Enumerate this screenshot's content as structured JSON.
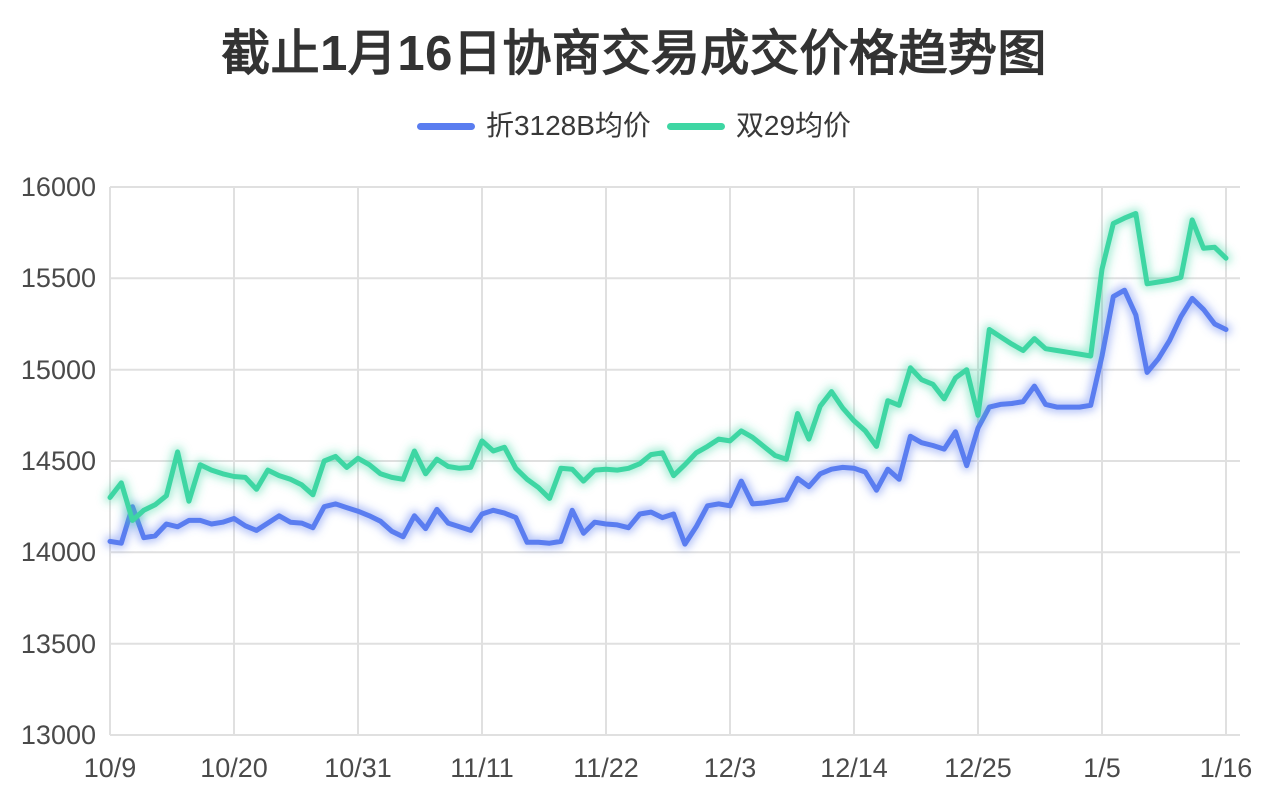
{
  "title": "截止1月16日协商交易成交价格趋势图",
  "colors": {
    "series_blue": "#5A7DF0",
    "series_green": "#3ED6A3",
    "grid": "#e0e0e0",
    "axis_text": "#4a4a4a",
    "title_text": "#333333",
    "background": "#ffffff"
  },
  "chart_data": {
    "type": "line",
    "title": "截止1月16日协商交易成交价格趋势图",
    "grid": true,
    "legend_position": "top",
    "ylim": [
      13000,
      16000
    ],
    "y_ticks": [
      13000,
      13500,
      14000,
      14500,
      15000,
      15500,
      16000
    ],
    "x_tick_labels": [
      "10/9",
      "10/20",
      "10/31",
      "11/11",
      "11/22",
      "12/3",
      "12/14",
      "12/25",
      "1/5",
      "1/16"
    ],
    "x_tick_indices": [
      0,
      11,
      22,
      33,
      44,
      55,
      66,
      77,
      88,
      99
    ],
    "x": [
      "10/9",
      "10/10",
      "10/11",
      "10/12",
      "10/13",
      "10/14",
      "10/15",
      "10/16",
      "10/17",
      "10/18",
      "10/19",
      "10/20",
      "10/21",
      "10/22",
      "10/23",
      "10/24",
      "10/25",
      "10/26",
      "10/27",
      "10/28",
      "10/29",
      "10/30",
      "10/31",
      "11/1",
      "11/2",
      "11/3",
      "11/4",
      "11/5",
      "11/6",
      "11/7",
      "11/8",
      "11/9",
      "11/10",
      "11/11",
      "11/12",
      "11/13",
      "11/14",
      "11/15",
      "11/16",
      "11/17",
      "11/18",
      "11/19",
      "11/20",
      "11/21",
      "11/22",
      "11/23",
      "11/24",
      "11/25",
      "11/26",
      "11/27",
      "11/28",
      "11/29",
      "11/30",
      "12/1",
      "12/2",
      "12/3",
      "12/4",
      "12/5",
      "12/6",
      "12/7",
      "12/8",
      "12/9",
      "12/10",
      "12/11",
      "12/12",
      "12/13",
      "12/14",
      "12/15",
      "12/16",
      "12/17",
      "12/18",
      "12/19",
      "12/20",
      "12/21",
      "12/22",
      "12/23",
      "12/24",
      "12/25",
      "12/26",
      "12/27",
      "12/28",
      "12/29",
      "12/30",
      "12/31",
      "1/1",
      "1/2",
      "1/3",
      "1/4",
      "1/5",
      "1/6",
      "1/7",
      "1/8",
      "1/9",
      "1/10",
      "1/11",
      "1/12",
      "1/13",
      "1/14",
      "1/15",
      "1/16"
    ],
    "series": [
      {
        "name": "折3128B均价",
        "color": "#5A7DF0",
        "values": [
          14060,
          14050,
          14250,
          14080,
          14090,
          14155,
          14140,
          14175,
          14175,
          14155,
          14165,
          14185,
          14145,
          14120,
          14160,
          14200,
          14165,
          14160,
          14135,
          14250,
          14265,
          14245,
          14225,
          14200,
          14170,
          14115,
          14085,
          14200,
          14130,
          14235,
          14160,
          14140,
          14120,
          14210,
          14230,
          14215,
          14190,
          14055,
          14055,
          14050,
          14060,
          14230,
          14105,
          14165,
          14155,
          14150,
          14135,
          14210,
          14220,
          14190,
          14210,
          14045,
          14140,
          14255,
          14265,
          14255,
          14390,
          14265,
          14270,
          14280,
          14290,
          14405,
          14360,
          14430,
          14455,
          14465,
          14460,
          14440,
          14340,
          14455,
          14400,
          14635,
          14600,
          14585,
          14565,
          14660,
          14475,
          14680,
          14795,
          14810,
          14815,
          14825,
          14910,
          14810,
          14795,
          14795,
          14795,
          14805,
          15075,
          15400,
          15435,
          15300,
          14985,
          15060,
          15160,
          15290,
          15390,
          15330,
          15250,
          15220
        ]
      },
      {
        "name": "双29均价",
        "color": "#3ED6A3",
        "values": [
          14300,
          14380,
          14175,
          14230,
          14260,
          14310,
          14550,
          14280,
          14480,
          14450,
          14430,
          14415,
          14410,
          14345,
          14450,
          14420,
          14400,
          14370,
          14315,
          14500,
          14525,
          14465,
          14515,
          14480,
          14430,
          14410,
          14400,
          14555,
          14430,
          14510,
          14470,
          14460,
          14465,
          14610,
          14555,
          14575,
          14460,
          14400,
          14355,
          14295,
          14460,
          14455,
          14390,
          14450,
          14455,
          14450,
          14460,
          14485,
          14535,
          14545,
          14420,
          14480,
          14545,
          14580,
          14620,
          14610,
          14665,
          14630,
          14580,
          14530,
          14510,
          14760,
          14620,
          14800,
          14880,
          14790,
          14720,
          14665,
          14580,
          14830,
          14805,
          15010,
          14945,
          14920,
          14840,
          14955,
          15000,
          14750,
          15220,
          15180,
          15140,
          15105,
          15170,
          15115,
          15105,
          15095,
          15085,
          15075,
          15550,
          15800,
          15830,
          15855,
          15470,
          15480,
          15490,
          15505,
          15820,
          15665,
          15670,
          15610
        ]
      }
    ]
  }
}
